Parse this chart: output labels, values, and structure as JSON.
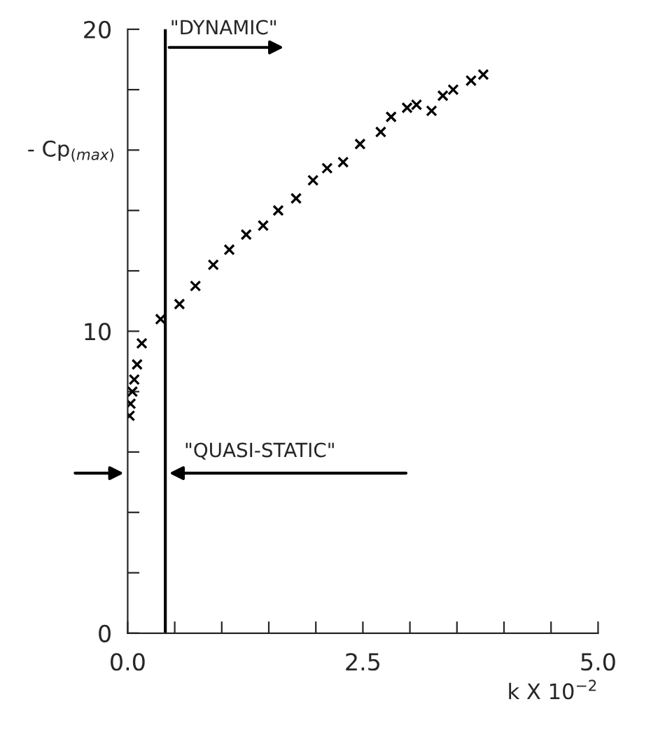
{
  "chart_data": {
    "type": "scatter",
    "xlabel": "k X 10$^{−2}$",
    "ylabel": "- Cp$_{(max)}$",
    "x": [
      0.02,
      0.03,
      0.05,
      0.07,
      0.1,
      0.15,
      0.35,
      0.55,
      0.72,
      0.91,
      1.08,
      1.26,
      1.44,
      1.6,
      1.79,
      1.97,
      2.12,
      2.29,
      2.47,
      2.69,
      2.8,
      2.97,
      3.07,
      3.23,
      3.35,
      3.46,
      3.65,
      3.78
    ],
    "values": [
      7.2,
      7.6,
      8.0,
      8.4,
      8.9,
      9.6,
      10.4,
      10.9,
      11.5,
      12.2,
      12.7,
      13.2,
      13.5,
      14.0,
      14.4,
      15.0,
      15.4,
      15.6,
      16.2,
      16.6,
      17.1,
      17.4,
      17.5,
      17.3,
      17.8,
      18.0,
      18.3,
      18.5
    ],
    "color": "#000000",
    "marker": "cross",
    "xlim": [
      0,
      5
    ],
    "ylim": [
      0,
      20
    ],
    "xticks": [
      {
        "value": 0,
        "label": "0.0"
      },
      {
        "value": 0.5,
        "label": null
      },
      {
        "value": 1.0,
        "label": null
      },
      {
        "value": 1.5,
        "label": null
      },
      {
        "value": 2.0,
        "label": null
      },
      {
        "value": 2.5,
        "label": "2.5"
      },
      {
        "value": 3.0,
        "label": null
      },
      {
        "value": 3.5,
        "label": null
      },
      {
        "value": 4.0,
        "label": null
      },
      {
        "value": 4.5,
        "label": null
      },
      {
        "value": 5,
        "label": "5.0"
      }
    ],
    "yticks": [
      0,
      {
        "value": 2,
        "label": null
      },
      {
        "value": 4,
        "label": null
      },
      {
        "value": 6,
        "label": null
      },
      {
        "value": 8,
        "label": null
      },
      10,
      {
        "value": 12,
        "label": null
      },
      {
        "value": 14,
        "label": null
      },
      {
        "value": 16,
        "label": null
      },
      {
        "value": 18,
        "label": null
      },
      20
    ],
    "ref_lines": [
      {
        "axis": "x",
        "value": 0.4,
        "color": "#000000"
      }
    ],
    "annotations": [
      {
        "text": "\"DYNAMIC\"",
        "x": 0.4,
        "y": 19.4
      },
      {
        "text": "\"QUASI-STATIC\"",
        "x": 0.4,
        "y": 5.3
      }
    ],
    "grid": false,
    "legend": false
  }
}
